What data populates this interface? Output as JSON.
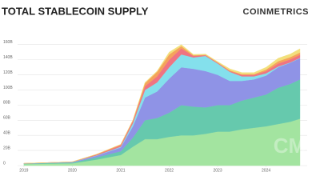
{
  "chart_data": {
    "type": "stacked-area",
    "title": "TOTAL STABLECOIN SUPPLY",
    "logo": "COINMETRICS",
    "watermark": "CM",
    "x": [
      2019,
      2019.5,
      2020,
      2020.5,
      2021,
      2021.25,
      2021.5,
      2021.75,
      2022,
      2022.25,
      2022.5,
      2022.75,
      2023,
      2023.25,
      2023.5,
      2023.75,
      2024,
      2024.25,
      2024.5,
      2024.7
    ],
    "xlim": [
      2018.87,
      2024.75
    ],
    "xticks": [
      2019,
      2020,
      2021,
      2022,
      2023,
      2024
    ],
    "ylim": [
      0,
      165
    ],
    "yticks": [
      0,
      {
        "value": 20,
        "label": "20B"
      },
      {
        "value": 40,
        "label": "40B"
      },
      {
        "value": 60,
        "label": "60B"
      },
      {
        "value": 80,
        "label": "80B"
      },
      {
        "value": 100,
        "label": "100B"
      },
      {
        "value": 120,
        "label": "120B"
      },
      {
        "value": 140,
        "label": "140B"
      },
      {
        "value": 160,
        "label": "160B"
      }
    ],
    "grid": true,
    "series": [
      {
        "color": "#a3e4a0",
        "values": [
          2,
          2.5,
          3,
          8,
          14,
          25,
          35,
          35,
          38,
          40,
          40,
          42,
          45,
          45,
          48,
          50,
          52,
          55,
          58,
          62
        ]
      },
      {
        "color": "#66c9ad",
        "values": [
          0.5,
          1,
          1,
          3,
          5,
          12,
          25,
          28,
          32,
          40,
          38,
          35,
          35,
          35,
          38,
          40,
          42,
          48,
          50,
          52
        ]
      },
      {
        "color": "#8f93e6",
        "values": [
          0.3,
          0.3,
          0.5,
          2,
          5,
          15,
          30,
          35,
          45,
          50,
          50,
          48,
          40,
          32,
          26,
          24,
          25,
          27,
          28,
          28
        ]
      },
      {
        "color": "#84e0ec",
        "values": [
          0,
          0,
          0.3,
          0.5,
          1,
          4,
          10,
          12,
          15,
          17,
          15,
          20,
          15,
          12,
          6,
          4,
          3,
          1,
          0.5,
          0.5
        ]
      },
      {
        "color": "#f07482",
        "values": [
          0.2,
          0.2,
          0.3,
          1,
          2,
          3,
          5,
          8,
          10,
          8,
          2,
          1,
          1,
          1,
          2,
          2,
          3,
          4,
          4,
          4
        ]
      },
      {
        "color": "#f5a35c",
        "values": [
          0,
          0,
          0,
          0.5,
          1,
          1,
          4,
          6,
          7,
          3,
          1,
          0.5,
          0.5,
          1,
          1,
          1,
          2,
          3,
          3,
          3
        ]
      },
      {
        "color": "#f2e07c",
        "values": [
          0,
          0,
          0,
          0,
          0,
          0,
          1,
          1,
          3,
          2,
          1,
          1,
          1,
          2,
          2,
          2,
          3,
          4,
          4,
          5
        ]
      }
    ]
  }
}
